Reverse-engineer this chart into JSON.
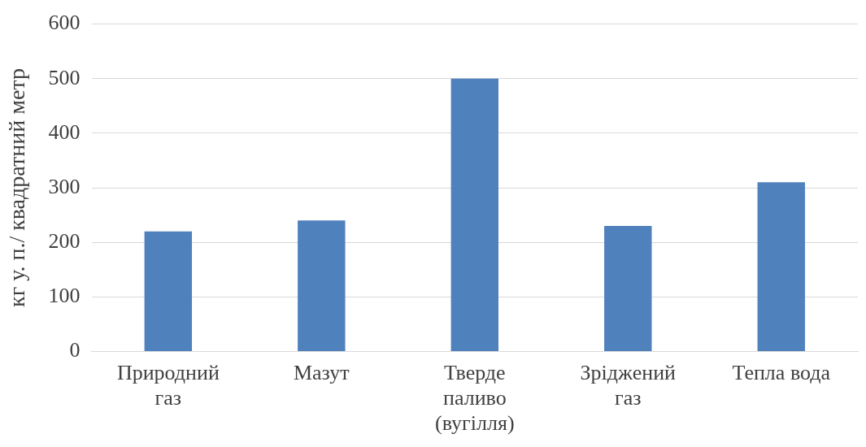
{
  "chart_data": {
    "type": "bar",
    "ylabel": "кг у. п./ квадратний метр",
    "categories": [
      "Природний газ",
      "Мазут",
      "Тверде паливо (вугілля)",
      "Зріджений газ",
      "Тепла вода"
    ],
    "values": [
      220,
      240,
      500,
      230,
      310
    ],
    "color": "#4f81bd",
    "ylim": [
      0,
      600
    ],
    "yticks": [
      0,
      100,
      200,
      300,
      400,
      500,
      600
    ],
    "grid": "y",
    "legend": false
  }
}
